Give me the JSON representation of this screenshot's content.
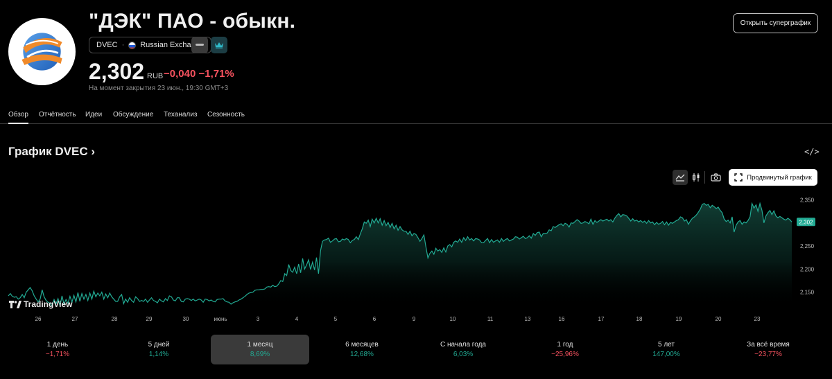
{
  "header": {
    "title": "\"ДЭК\" ПАО - обыкн.",
    "ticker": "DVEC",
    "exchange": "Russian Exchange",
    "price": "2,302",
    "currency": "RUB",
    "change": "−0,040 −1,71%",
    "timestamp": "На момент закрытия 23 июн., 19:30 GMT+3",
    "superchart_label": "Открыть суперграфик"
  },
  "tabs": [
    "Обзор",
    "Отчётность",
    "Идеи",
    "Обсуждение",
    "Теханализ",
    "Сезонность"
  ],
  "section": {
    "title": "График DVEC",
    "chevron": "›",
    "embed_icon": "</>"
  },
  "toolbar": {
    "advanced_label": "Продвинутый график"
  },
  "branding": {
    "tradingview": "TradingView"
  },
  "colors": {
    "accent_green": "#22ab94",
    "negative_red": "#f7525f",
    "price_tag": "#22ab94"
  },
  "chart_data": {
    "type": "area",
    "x_labels": [
      "26",
      "27",
      "28",
      "29",
      "30",
      "июнь",
      "3",
      "4",
      "5",
      "6",
      "9",
      "10",
      "11",
      "13",
      "16",
      "17",
      "18",
      "19",
      "20",
      "23"
    ],
    "y_ticks": [
      "2,350",
      "2,300",
      "2,250",
      "2,200",
      "2,150"
    ],
    "y_tick_values": [
      2.35,
      2.3,
      2.25,
      2.2,
      2.15
    ],
    "ylim": [
      2.115,
      2.37
    ],
    "last_price_label": "2,302",
    "last_price": 2.302,
    "series": [
      {
        "values": [
          2.142,
          2.147,
          2.141,
          2.139,
          2.14,
          2.135,
          2.138,
          2.145,
          2.138,
          2.15,
          2.155,
          2.16,
          2.153,
          2.142,
          2.135,
          2.129,
          2.135,
          2.155,
          2.14,
          2.132,
          2.128,
          2.126,
          2.12,
          2.134,
          2.125,
          2.136,
          2.12,
          2.142,
          2.124,
          2.134,
          2.126,
          2.141,
          2.128,
          2.143,
          2.129,
          2.149,
          2.13,
          2.147,
          2.135,
          2.145,
          2.132,
          2.148,
          2.135,
          2.152,
          2.14,
          2.148,
          2.142,
          2.15,
          2.135,
          2.146,
          2.138,
          2.148,
          2.14,
          2.135,
          2.13,
          2.13,
          2.14,
          2.145,
          2.125,
          2.135,
          2.128,
          2.138,
          2.132,
          2.128,
          2.14,
          2.136,
          2.13,
          2.132,
          2.13,
          2.135,
          2.128,
          2.133,
          2.138,
          2.132,
          2.13,
          2.127,
          2.135,
          2.131,
          2.129,
          2.136,
          2.132,
          2.142,
          2.14,
          2.133,
          2.131,
          2.138,
          2.138,
          2.13,
          2.129,
          2.135,
          2.136,
          2.135,
          2.132,
          2.135,
          2.131,
          2.133,
          2.135,
          2.133,
          2.128,
          2.135,
          2.134,
          2.131,
          2.133,
          2.13,
          2.129,
          2.134,
          2.135,
          2.135,
          2.136,
          2.131,
          2.129,
          2.128,
          2.124,
          2.127,
          2.129,
          2.13,
          2.133,
          2.135,
          2.138,
          2.141,
          2.145,
          2.148,
          2.149,
          2.15,
          2.154,
          2.155,
          2.155,
          2.156,
          2.156,
          2.157,
          2.161,
          2.162,
          2.161,
          2.165,
          2.162,
          2.163,
          2.168,
          2.175,
          2.173,
          2.19,
          2.186,
          2.21,
          2.197,
          2.193,
          2.204,
          2.19,
          2.211,
          2.192,
          2.223,
          2.2,
          2.209,
          2.22,
          2.199,
          2.215,
          2.198,
          2.225,
          2.19,
          2.24,
          2.26,
          2.263,
          2.264,
          2.267,
          2.258,
          2.261,
          2.265,
          2.266,
          2.259,
          2.26,
          2.265,
          2.263,
          2.266,
          2.264,
          2.257,
          2.262,
          2.264,
          2.27,
          2.264,
          2.276,
          2.287,
          2.302,
          2.299,
          2.306,
          2.292,
          2.308,
          2.3,
          2.31,
          2.3,
          2.309,
          2.295,
          2.305,
          2.294,
          2.301,
          2.29,
          2.299,
          2.287,
          2.295,
          2.284,
          2.292,
          2.285,
          2.282,
          2.282,
          2.275,
          2.282,
          2.272,
          2.277,
          2.275,
          2.268,
          2.26,
          2.266,
          2.274,
          2.248,
          2.224,
          2.234,
          2.239,
          2.232,
          2.245,
          2.239,
          2.242,
          2.236,
          2.246,
          2.237,
          2.25,
          2.253,
          2.248,
          2.258,
          2.261,
          2.258,
          2.265,
          2.258,
          2.268,
          2.262,
          2.27,
          2.263,
          2.266,
          2.261,
          2.266,
          2.265,
          2.263,
          2.257,
          2.257,
          2.262,
          2.266,
          2.257,
          2.264,
          2.258,
          2.261,
          2.263,
          2.258,
          2.266,
          2.26,
          2.264,
          2.266,
          2.261,
          2.263,
          2.265,
          2.27,
          2.269,
          2.265,
          2.268,
          2.271,
          2.266,
          2.268,
          2.272,
          2.267,
          2.277,
          2.273,
          2.279,
          2.28,
          2.27,
          2.277,
          2.277,
          2.278,
          2.285,
          2.283,
          2.292,
          2.29,
          2.293,
          2.296,
          2.298,
          2.294,
          2.299,
          2.297,
          2.291,
          2.3,
          2.299,
          2.303,
          2.307,
          2.304,
          2.299,
          2.3,
          2.303,
          2.301,
          2.298,
          2.308,
          2.297,
          2.305,
          2.301,
          2.304,
          2.307,
          2.304,
          2.306,
          2.308,
          2.304,
          2.307,
          2.302,
          2.31,
          2.316,
          2.32,
          2.313,
          2.318,
          2.317,
          2.315,
          2.31,
          2.304,
          2.309,
          2.304,
          2.306,
          2.302,
          2.305,
          2.301,
          2.304,
          2.299,
          2.305,
          2.3,
          2.302,
          2.296,
          2.301,
          2.297,
          2.299,
          2.303,
          2.296,
          2.302,
          2.295,
          2.301,
          2.299,
          2.302,
          2.305,
          2.307,
          2.313,
          2.311,
          2.304,
          2.307,
          2.297,
          2.304,
          2.31,
          2.313,
          2.317,
          2.323,
          2.33,
          2.34,
          2.342,
          2.338,
          2.34,
          2.333,
          2.338,
          2.335,
          2.331,
          2.334,
          2.327,
          2.322,
          2.308,
          2.303,
          2.306,
          2.3,
          2.313,
          2.28,
          2.295,
          2.302,
          2.305,
          2.297,
          2.302,
          2.3,
          2.305,
          2.313,
          2.342,
          2.332,
          2.339,
          2.325,
          2.342,
          2.327,
          2.3,
          2.315,
          2.322,
          2.327,
          2.318,
          2.326,
          2.315,
          2.311,
          2.314,
          2.311,
          2.308,
          2.306,
          2.31,
          2.307,
          2.302
        ]
      }
    ]
  },
  "periods": [
    {
      "label": "1 день",
      "value": "−1,71%",
      "dir": "neg"
    },
    {
      "label": "5 дней",
      "value": "1,14%",
      "dir": "pos"
    },
    {
      "label": "1 месяц",
      "value": "8,69%",
      "dir": "pos"
    },
    {
      "label": "6 месяцев",
      "value": "12,68%",
      "dir": "pos"
    },
    {
      "label": "С начала года",
      "value": "6,03%",
      "dir": "pos"
    },
    {
      "label": "1 год",
      "value": "−25,96%",
      "dir": "neg"
    },
    {
      "label": "5 лет",
      "value": "147,00%",
      "dir": "pos"
    },
    {
      "label": "За всё время",
      "value": "−23,77%",
      "dir": "neg"
    }
  ]
}
